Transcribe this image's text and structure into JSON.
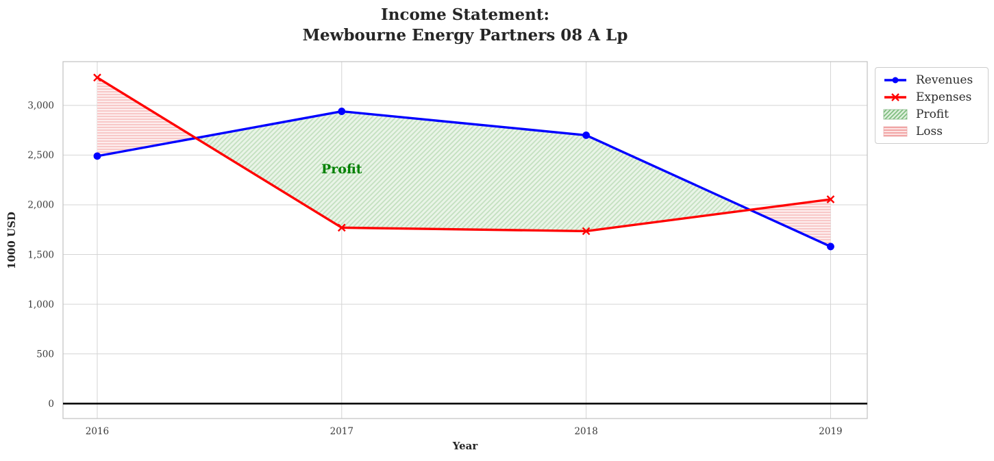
{
  "chart_data": {
    "type": "line",
    "title": "Income Statement:\nMewbourne Energy Partners 08 A Lp",
    "xlabel": "Year",
    "ylabel": "1000 USD",
    "x": [
      2016,
      2017,
      2018,
      2019
    ],
    "xtick_labels": [
      "2016",
      "2017",
      "2018",
      "2019"
    ],
    "yticks": [
      0,
      500,
      1000,
      1500,
      2000,
      2500,
      3000
    ],
    "ytick_labels": [
      "0",
      "500",
      "1,000",
      "1,500",
      "2,000",
      "2,500",
      "3,000"
    ],
    "xlim": [
      2015.86,
      2019.15
    ],
    "ylim": [
      -150,
      3440
    ],
    "grid": true,
    "zero_line": true,
    "series": [
      {
        "name": "Revenues",
        "values": [
          2490,
          2940,
          2700,
          1580
        ],
        "color": "#0000ff",
        "marker": "circle"
      },
      {
        "name": "Expenses",
        "values": [
          3280,
          1770,
          1735,
          2055
        ],
        "color": "#ff0000",
        "marker": "x"
      }
    ],
    "areas": [
      {
        "name": "Profit",
        "fill": "#e9f4e7",
        "hatch": "diagonal",
        "hatch_color": "#c3e0c0"
      },
      {
        "name": "Loss",
        "fill": "#fdeeee",
        "hatch": "horizontal",
        "hatch_color": "#f8c2c2"
      }
    ],
    "annotations": [
      {
        "text": "Profit",
        "x": 2017.0,
        "y": 2360,
        "color": "#008000"
      }
    ],
    "legend": {
      "position": "outside-top-right",
      "items": [
        {
          "label": "Revenues",
          "type": "line",
          "marker": "circle",
          "color": "#0000ff"
        },
        {
          "label": "Expenses",
          "type": "line",
          "marker": "x",
          "color": "#ff0000"
        },
        {
          "label": "Profit",
          "type": "patch",
          "hatch": "diagonal",
          "color": "#79b979"
        },
        {
          "label": "Loss",
          "type": "patch",
          "hatch": "horizontal",
          "color": "#f09c9c"
        }
      ]
    }
  }
}
